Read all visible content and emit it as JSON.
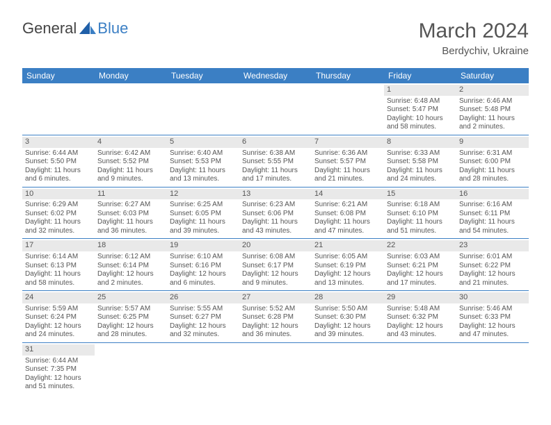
{
  "brand": {
    "part1": "General",
    "part2": "Blue",
    "color_dark": "#444444",
    "color_blue": "#3b7fc4"
  },
  "header": {
    "month_title": "March 2024",
    "location": "Berdychiv, Ukraine"
  },
  "calendar": {
    "header_bg": "#3b7fc4",
    "header_text_color": "#ffffff",
    "cell_border_color": "#3b7fc4",
    "daynum_bg": "#e9e9e9",
    "text_color": "#555555",
    "weekdays": [
      "Sunday",
      "Monday",
      "Tuesday",
      "Wednesday",
      "Thursday",
      "Friday",
      "Saturday"
    ],
    "first_weekday_index": 5,
    "days": [
      {
        "n": 1,
        "sunrise": "6:48 AM",
        "sunset": "5:47 PM",
        "daylight": "10 hours and 58 minutes."
      },
      {
        "n": 2,
        "sunrise": "6:46 AM",
        "sunset": "5:48 PM",
        "daylight": "11 hours and 2 minutes."
      },
      {
        "n": 3,
        "sunrise": "6:44 AM",
        "sunset": "5:50 PM",
        "daylight": "11 hours and 6 minutes."
      },
      {
        "n": 4,
        "sunrise": "6:42 AM",
        "sunset": "5:52 PM",
        "daylight": "11 hours and 9 minutes."
      },
      {
        "n": 5,
        "sunrise": "6:40 AM",
        "sunset": "5:53 PM",
        "daylight": "11 hours and 13 minutes."
      },
      {
        "n": 6,
        "sunrise": "6:38 AM",
        "sunset": "5:55 PM",
        "daylight": "11 hours and 17 minutes."
      },
      {
        "n": 7,
        "sunrise": "6:36 AM",
        "sunset": "5:57 PM",
        "daylight": "11 hours and 21 minutes."
      },
      {
        "n": 8,
        "sunrise": "6:33 AM",
        "sunset": "5:58 PM",
        "daylight": "11 hours and 24 minutes."
      },
      {
        "n": 9,
        "sunrise": "6:31 AM",
        "sunset": "6:00 PM",
        "daylight": "11 hours and 28 minutes."
      },
      {
        "n": 10,
        "sunrise": "6:29 AM",
        "sunset": "6:02 PM",
        "daylight": "11 hours and 32 minutes."
      },
      {
        "n": 11,
        "sunrise": "6:27 AM",
        "sunset": "6:03 PM",
        "daylight": "11 hours and 36 minutes."
      },
      {
        "n": 12,
        "sunrise": "6:25 AM",
        "sunset": "6:05 PM",
        "daylight": "11 hours and 39 minutes."
      },
      {
        "n": 13,
        "sunrise": "6:23 AM",
        "sunset": "6:06 PM",
        "daylight": "11 hours and 43 minutes."
      },
      {
        "n": 14,
        "sunrise": "6:21 AM",
        "sunset": "6:08 PM",
        "daylight": "11 hours and 47 minutes."
      },
      {
        "n": 15,
        "sunrise": "6:18 AM",
        "sunset": "6:10 PM",
        "daylight": "11 hours and 51 minutes."
      },
      {
        "n": 16,
        "sunrise": "6:16 AM",
        "sunset": "6:11 PM",
        "daylight": "11 hours and 54 minutes."
      },
      {
        "n": 17,
        "sunrise": "6:14 AM",
        "sunset": "6:13 PM",
        "daylight": "11 hours and 58 minutes."
      },
      {
        "n": 18,
        "sunrise": "6:12 AM",
        "sunset": "6:14 PM",
        "daylight": "12 hours and 2 minutes."
      },
      {
        "n": 19,
        "sunrise": "6:10 AM",
        "sunset": "6:16 PM",
        "daylight": "12 hours and 6 minutes."
      },
      {
        "n": 20,
        "sunrise": "6:08 AM",
        "sunset": "6:17 PM",
        "daylight": "12 hours and 9 minutes."
      },
      {
        "n": 21,
        "sunrise": "6:05 AM",
        "sunset": "6:19 PM",
        "daylight": "12 hours and 13 minutes."
      },
      {
        "n": 22,
        "sunrise": "6:03 AM",
        "sunset": "6:21 PM",
        "daylight": "12 hours and 17 minutes."
      },
      {
        "n": 23,
        "sunrise": "6:01 AM",
        "sunset": "6:22 PM",
        "daylight": "12 hours and 21 minutes."
      },
      {
        "n": 24,
        "sunrise": "5:59 AM",
        "sunset": "6:24 PM",
        "daylight": "12 hours and 24 minutes."
      },
      {
        "n": 25,
        "sunrise": "5:57 AM",
        "sunset": "6:25 PM",
        "daylight": "12 hours and 28 minutes."
      },
      {
        "n": 26,
        "sunrise": "5:55 AM",
        "sunset": "6:27 PM",
        "daylight": "12 hours and 32 minutes."
      },
      {
        "n": 27,
        "sunrise": "5:52 AM",
        "sunset": "6:28 PM",
        "daylight": "12 hours and 36 minutes."
      },
      {
        "n": 28,
        "sunrise": "5:50 AM",
        "sunset": "6:30 PM",
        "daylight": "12 hours and 39 minutes."
      },
      {
        "n": 29,
        "sunrise": "5:48 AM",
        "sunset": "6:32 PM",
        "daylight": "12 hours and 43 minutes."
      },
      {
        "n": 30,
        "sunrise": "5:46 AM",
        "sunset": "6:33 PM",
        "daylight": "12 hours and 47 minutes."
      },
      {
        "n": 31,
        "sunrise": "6:44 AM",
        "sunset": "7:35 PM",
        "daylight": "12 hours and 51 minutes."
      }
    ],
    "labels": {
      "sunrise": "Sunrise:",
      "sunset": "Sunset:",
      "daylight": "Daylight:"
    }
  }
}
